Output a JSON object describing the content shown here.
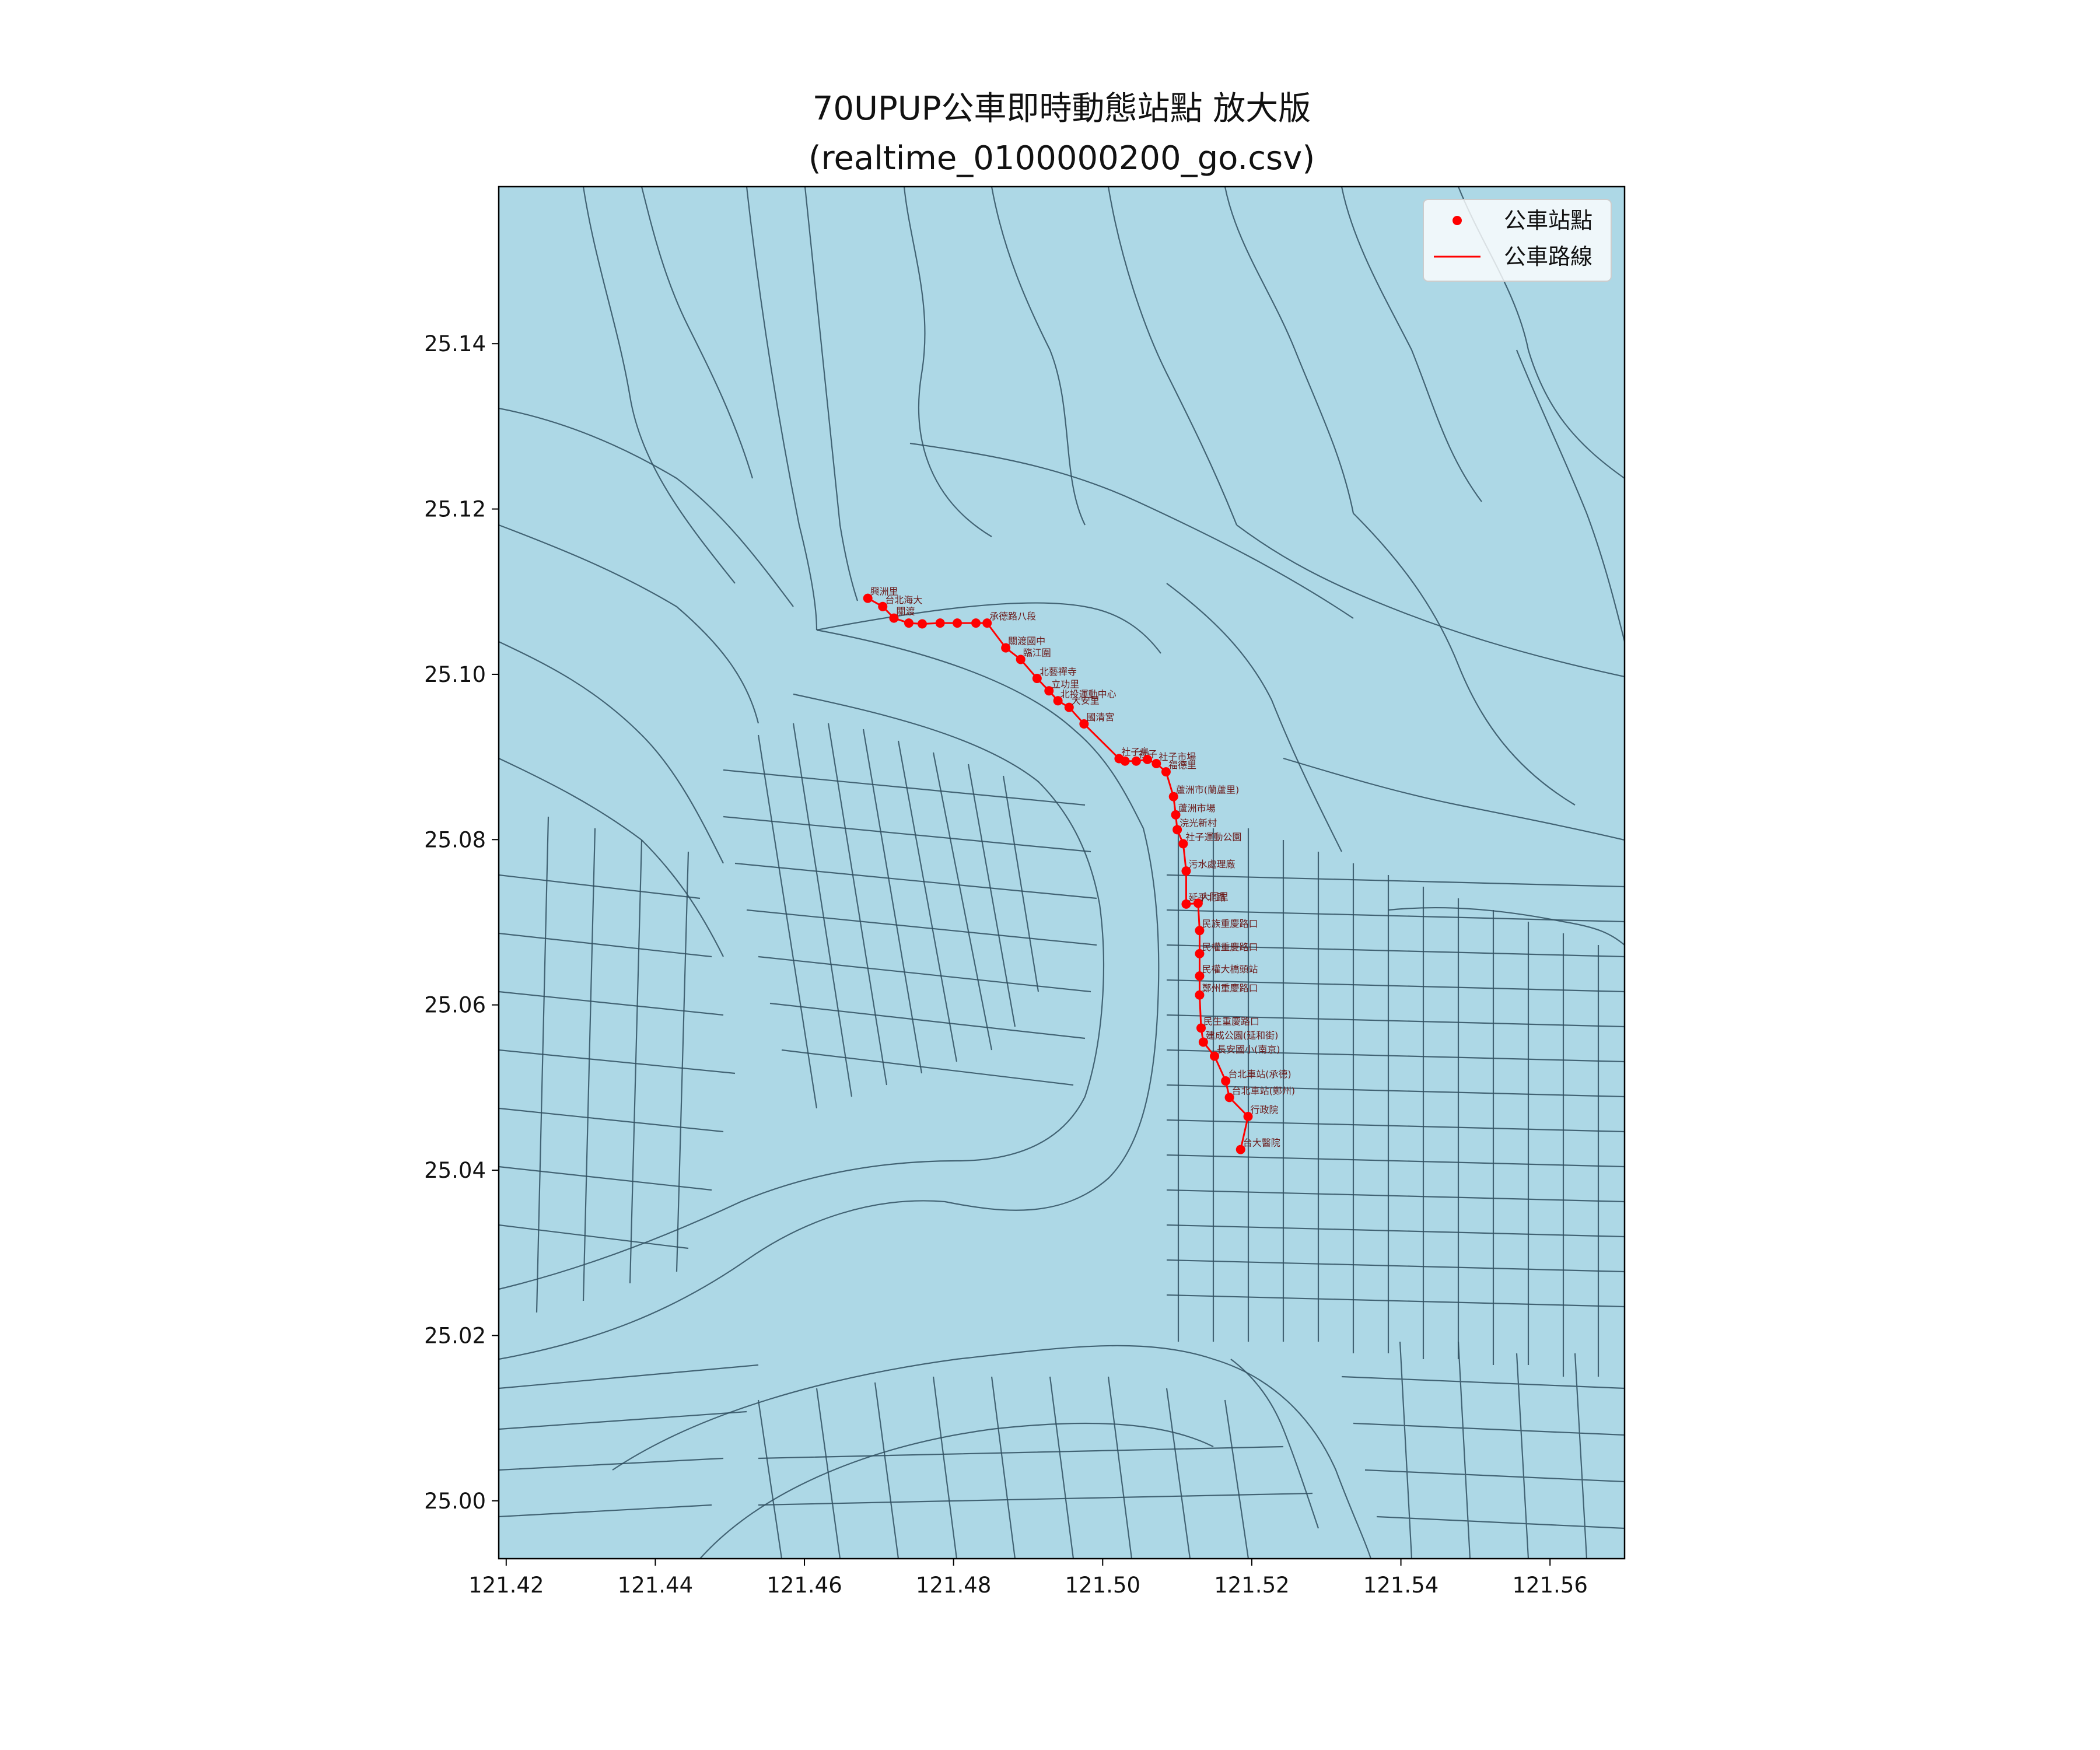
{
  "title_line1": "70UPUP公車即時動態站點 放大版",
  "title_line2": "(realtime_0100000200_go.csv)",
  "colors": {
    "map_fill": "#add8e6",
    "boundary": "#2f4f5f",
    "route": "#ff0000",
    "axes": "#000000"
  },
  "legend": {
    "placement": "top-right",
    "items": [
      {
        "label": "公車站點",
        "icon": "red-dot-marker"
      },
      {
        "label": "公車路線",
        "icon": "red-line-marker"
      }
    ]
  },
  "axes": {
    "xlim": [
      121.419,
      121.57
    ],
    "ylim": [
      24.993,
      25.159
    ],
    "x_ticks": [
      "121.42",
      "121.44",
      "121.46",
      "121.48",
      "121.50",
      "121.52",
      "121.54",
      "121.56"
    ],
    "y_ticks": [
      "25.00",
      "25.02",
      "25.04",
      "25.06",
      "25.08",
      "25.10",
      "25.12",
      "25.14"
    ]
  },
  "chart_data": {
    "type": "scatter",
    "series": [
      {
        "name": "公車站點",
        "points": [
          {
            "lon": 121.4685,
            "lat": 25.1092,
            "label": "興洲里"
          },
          {
            "lon": 121.4705,
            "lat": 25.1082,
            "label": "台北海大"
          },
          {
            "lon": 121.472,
            "lat": 25.1068,
            "label": "關渡"
          },
          {
            "lon": 121.474,
            "lat": 25.1062,
            "label": ""
          },
          {
            "lon": 121.4758,
            "lat": 25.1061,
            "label": ""
          },
          {
            "lon": 121.4782,
            "lat": 25.1062,
            "label": ""
          },
          {
            "lon": 121.4805,
            "lat": 25.1062,
            "label": ""
          },
          {
            "lon": 121.483,
            "lat": 25.1062,
            "label": ""
          },
          {
            "lon": 121.4845,
            "lat": 25.1062,
            "label": "承德路八段"
          },
          {
            "lon": 121.487,
            "lat": 25.1032,
            "label": "關渡國中"
          },
          {
            "lon": 121.489,
            "lat": 25.1018,
            "label": "臨江圍"
          },
          {
            "lon": 121.4912,
            "lat": 25.0995,
            "label": "北藝禪寺"
          },
          {
            "lon": 121.4928,
            "lat": 25.098,
            "label": "立功里"
          },
          {
            "lon": 121.494,
            "lat": 25.0968,
            "label": "北投運動中心"
          },
          {
            "lon": 121.4955,
            "lat": 25.096,
            "label": "大安里"
          },
          {
            "lon": 121.4975,
            "lat": 25.094,
            "label": "國清宮"
          },
          {
            "lon": 121.5022,
            "lat": 25.0898,
            "label": "社子島"
          },
          {
            "lon": 121.503,
            "lat": 25.0895,
            "label": ""
          },
          {
            "lon": 121.5045,
            "lat": 25.0895,
            "label": "社子"
          },
          {
            "lon": 121.506,
            "lat": 25.0897,
            "label": ""
          },
          {
            "lon": 121.5072,
            "lat": 25.0892,
            "label": "社子市場"
          },
          {
            "lon": 121.5085,
            "lat": 25.0882,
            "label": "福德里"
          },
          {
            "lon": 121.5095,
            "lat": 25.0852,
            "label": "蘆洲市(蘭蘆里)"
          },
          {
            "lon": 121.5098,
            "lat": 25.083,
            "label": "蘆洲市場"
          },
          {
            "lon": 121.51,
            "lat": 25.0812,
            "label": "浣光新村"
          },
          {
            "lon": 121.5108,
            "lat": 25.0795,
            "label": "社子運動公園"
          },
          {
            "lon": 121.5112,
            "lat": 25.0762,
            "label": "污水處理廠"
          },
          {
            "lon": 121.5112,
            "lat": 25.0722,
            "label": "延平北路"
          },
          {
            "lon": 121.5128,
            "lat": 25.0723,
            "label": "大同里"
          },
          {
            "lon": 121.513,
            "lat": 25.069,
            "label": "民族重慶路口"
          },
          {
            "lon": 121.513,
            "lat": 25.0662,
            "label": "民權重慶路口"
          },
          {
            "lon": 121.513,
            "lat": 25.0635,
            "label": "民權大橋頭站"
          },
          {
            "lon": 121.513,
            "lat": 25.0612,
            "label": "鄭州重慶路口"
          },
          {
            "lon": 121.5132,
            "lat": 25.0572,
            "label": "民生重慶路口"
          },
          {
            "lon": 121.5135,
            "lat": 25.0555,
            "label": "建成公園(延和街)"
          },
          {
            "lon": 121.515,
            "lat": 25.0538,
            "label": "長安國小(南京)"
          },
          {
            "lon": 121.5165,
            "lat": 25.0508,
            "label": "台北車站(承德)"
          },
          {
            "lon": 121.517,
            "lat": 25.0488,
            "label": "台北車站(鄭州)"
          },
          {
            "lon": 121.5195,
            "lat": 25.0465,
            "label": "行政院"
          },
          {
            "lon": 121.5185,
            "lat": 25.0425,
            "label": "台大醫院"
          }
        ]
      },
      {
        "name": "公車路線",
        "type": "line",
        "follows": "公車站點"
      }
    ]
  }
}
